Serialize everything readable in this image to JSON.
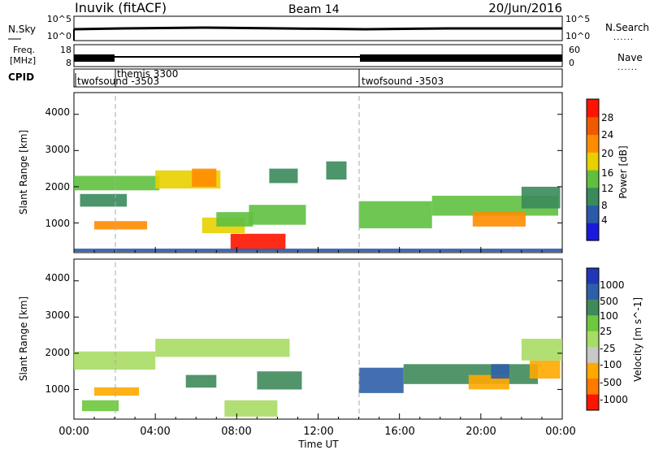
{
  "header": {
    "site": "Inuvik (fitACF)",
    "beam": "Beam 14",
    "date": "20/Jun/2016"
  },
  "strip_labels": {
    "nsky": "N.Sky",
    "nsearch": "N.Search",
    "freq_line1": "Freq.",
    "freq_line2": "[MHz]",
    "nave": "Nave",
    "cpid": "CPID",
    "dots": "......"
  },
  "strip_ticks": {
    "nsky_left": [
      "10^5",
      "10^0"
    ],
    "nsky_right": [
      "10^5",
      "10^0"
    ],
    "freq_left": [
      "18",
      "8"
    ],
    "freq_right": [
      "60",
      "0"
    ]
  },
  "cpid_segments": [
    {
      "label": "twofsound -3503",
      "start": "00:00"
    },
    {
      "label": "themis 3300",
      "start": "02:00"
    },
    {
      "label": "twofsound -3503",
      "start": "14:00"
    }
  ],
  "time_axis": {
    "title": "Time UT",
    "ticks": [
      "00:00",
      "04:00",
      "08:00",
      "12:00",
      "16:00",
      "20:00",
      "00:00"
    ]
  },
  "range_axis": {
    "title": "Slant Range [km]",
    "ticks": [
      "1000",
      "2000",
      "3000",
      "4000"
    ]
  },
  "power_scale": {
    "title": "Power [dB]",
    "labels": [
      "4",
      "8",
      "12",
      "16",
      "20",
      "24",
      "28"
    ],
    "colors": [
      "#1a1adc",
      "#2a5aa8",
      "#3a8a5a",
      "#5fc040",
      "#e8d000",
      "#ff8c00",
      "#ee5a00",
      "#ff1400"
    ]
  },
  "velocity_scale": {
    "title": "Velocity [m s^-1]",
    "labels": [
      "1000",
      "500",
      "100",
      "25",
      "-25",
      "-100",
      "-500",
      "-1000"
    ],
    "colors": [
      "#2037b8",
      "#2f5fa8",
      "#3f8a5a",
      "#6cc83c",
      "#a8dc64",
      "#c8c8c8",
      "#ffa800",
      "#ff7800",
      "#ff1400"
    ]
  },
  "chart_data": [
    {
      "type": "heatmap",
      "panel": "power",
      "x_unit": "hours UT",
      "y_unit": "km",
      "xlim": [
        0,
        24
      ],
      "ylim": [
        180,
        4600
      ],
      "clim": [
        0,
        30
      ],
      "colorbar_label": "Power [dB]",
      "regions": [
        {
          "t0": 0.0,
          "t1": 4.2,
          "r0": 1900,
          "r1": 2300,
          "v": 14
        },
        {
          "t0": 0.3,
          "t1": 2.6,
          "r0": 1450,
          "r1": 1800,
          "v": 10
        },
        {
          "t0": 1.0,
          "t1": 3.6,
          "r0": 820,
          "r1": 1050,
          "v": 20
        },
        {
          "t0": 4.0,
          "t1": 7.2,
          "r0": 1950,
          "r1": 2450,
          "v": 16
        },
        {
          "t0": 5.8,
          "t1": 7.0,
          "r0": 2000,
          "r1": 2500,
          "v": 22
        },
        {
          "t0": 6.3,
          "t1": 8.4,
          "r0": 720,
          "r1": 1150,
          "v": 16
        },
        {
          "t0": 7.0,
          "t1": 8.8,
          "r0": 900,
          "r1": 1300,
          "v": 12
        },
        {
          "t0": 7.7,
          "t1": 10.4,
          "r0": 260,
          "r1": 700,
          "v": 29
        },
        {
          "t0": 8.6,
          "t1": 11.4,
          "r0": 950,
          "r1": 1500,
          "v": 12
        },
        {
          "t0": 9.6,
          "t1": 11.0,
          "r0": 2100,
          "r1": 2500,
          "v": 8
        },
        {
          "t0": 12.4,
          "t1": 13.4,
          "r0": 2200,
          "r1": 2700,
          "v": 8
        },
        {
          "t0": 14.0,
          "t1": 17.6,
          "r0": 850,
          "r1": 1600,
          "v": 14
        },
        {
          "t0": 17.6,
          "t1": 23.8,
          "r0": 1200,
          "r1": 1750,
          "v": 12
        },
        {
          "t0": 19.6,
          "t1": 22.2,
          "r0": 900,
          "r1": 1300,
          "v": 20
        },
        {
          "t0": 22.0,
          "t1": 23.9,
          "r0": 1400,
          "r1": 2000,
          "v": 10
        },
        {
          "t0": 0.0,
          "t1": 24.0,
          "r0": 200,
          "r1": 290,
          "v": 6
        }
      ]
    },
    {
      "type": "heatmap",
      "panel": "velocity",
      "x_unit": "hours UT",
      "y_unit": "km",
      "xlim": [
        0,
        24
      ],
      "ylim": [
        180,
        4600
      ],
      "clim": [
        -1000,
        1000
      ],
      "colorbar_label": "Velocity [m s^-1]",
      "regions": [
        {
          "t0": 0.0,
          "t1": 4.0,
          "r0": 1550,
          "r1": 2050,
          "v": 0
        },
        {
          "t0": 1.0,
          "t1": 3.2,
          "r0": 830,
          "r1": 1060,
          "v": -200
        },
        {
          "t0": 0.4,
          "t1": 2.2,
          "r0": 400,
          "r1": 700,
          "v": 60
        },
        {
          "t0": 4.0,
          "t1": 10.6,
          "r0": 1900,
          "r1": 2400,
          "v": 0
        },
        {
          "t0": 5.5,
          "t1": 7.0,
          "r0": 1050,
          "r1": 1400,
          "v": 200
        },
        {
          "t0": 7.4,
          "t1": 10.0,
          "r0": 250,
          "r1": 700,
          "v": 0
        },
        {
          "t0": 9.0,
          "t1": 11.2,
          "r0": 1000,
          "r1": 1500,
          "v": 200
        },
        {
          "t0": 14.0,
          "t1": 16.2,
          "r0": 900,
          "r1": 1600,
          "v": 700
        },
        {
          "t0": 16.2,
          "t1": 22.8,
          "r0": 1150,
          "r1": 1700,
          "v": 200
        },
        {
          "t0": 19.4,
          "t1": 21.4,
          "r0": 1000,
          "r1": 1400,
          "v": -250
        },
        {
          "t0": 20.5,
          "t1": 21.4,
          "r0": 1300,
          "r1": 1700,
          "v": 800
        },
        {
          "t0": 22.4,
          "t1": 23.9,
          "r0": 1300,
          "r1": 1800,
          "v": -200
        },
        {
          "t0": 22.0,
          "t1": 24.0,
          "r0": 1800,
          "r1": 2400,
          "v": 0
        }
      ]
    }
  ]
}
